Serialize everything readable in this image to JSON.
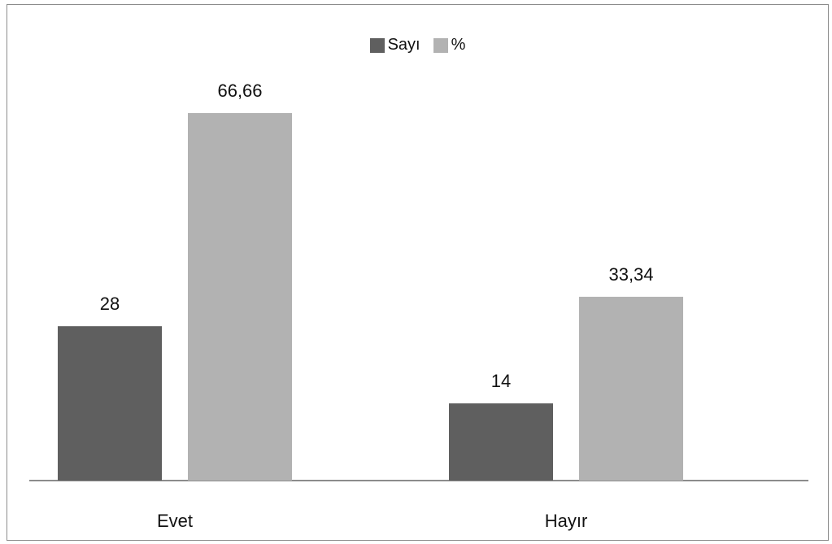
{
  "chart_data": {
    "type": "bar",
    "categories": [
      "Evet",
      "Hayır"
    ],
    "series": [
      {
        "name": "Sayı",
        "values": [
          28,
          14
        ],
        "labels": [
          "28",
          "14"
        ],
        "color": "#5f5f5f"
      },
      {
        "name": "%",
        "values": [
          66.66,
          33.34
        ],
        "labels": [
          "66,66",
          "33,34"
        ],
        "color": "#b2b2b2"
      }
    ],
    "ylim": [
      0,
      70
    ],
    "grid": false,
    "legend_position": "top-center"
  }
}
